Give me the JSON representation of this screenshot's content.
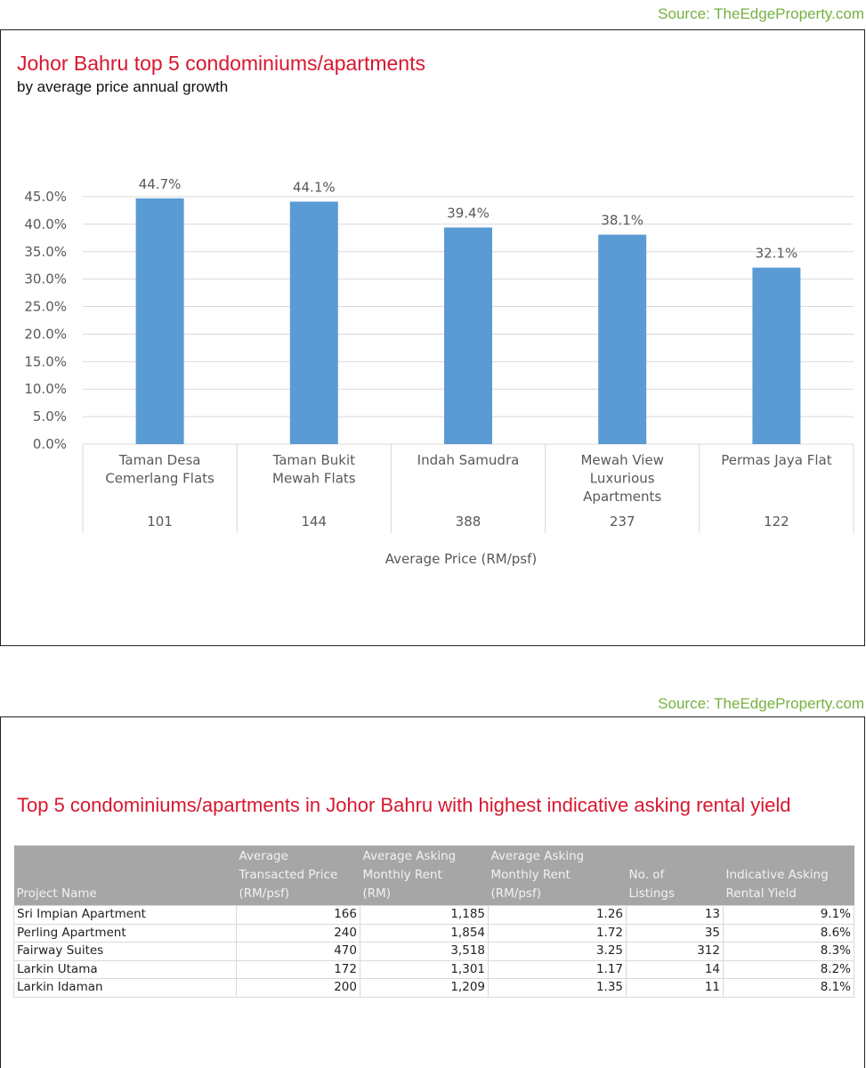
{
  "chart1": {
    "source": "Source: TheEdgeProperty.com",
    "title": "Johor Bahru top 5 condominiums/apartments",
    "subtitle": "by average price annual growth"
  },
  "chart_data": {
    "type": "bar",
    "categories": [
      [
        "Taman Desa",
        "Cemerlang Flats"
      ],
      [
        "Taman Bukit",
        "Mewah Flats"
      ],
      [
        "Indah Samudra"
      ],
      [
        "Mewah View",
        "Luxurious",
        "Apartments"
      ],
      [
        "Permas Jaya Flat"
      ]
    ],
    "values": [
      44.7,
      44.1,
      39.4,
      38.1,
      32.1
    ],
    "data_labels": [
      "44.7%",
      "44.1%",
      "39.4%",
      "38.1%",
      "32.1%"
    ],
    "secondary_categories": [
      "101",
      "144",
      "388",
      "237",
      "122"
    ],
    "xlabel": "Average Price (RM/psf)",
    "ylabel": "",
    "ylim": [
      0,
      45
    ],
    "yticks": [
      0,
      5,
      10,
      15,
      20,
      25,
      30,
      35,
      40,
      45
    ],
    "ytick_labels": [
      "0.0%",
      "5.0%",
      "10.0%",
      "15.0%",
      "20.0%",
      "25.0%",
      "30.0%",
      "35.0%",
      "40.0%",
      "45.0%"
    ],
    "bar_color": "#5b9bd5",
    "grid": true,
    "legend": "none"
  },
  "table2": {
    "source": "Source: TheEdgeProperty.com",
    "title": "Top 5 condominiums/apartments in Johor Bahru with highest indicative asking rental yield",
    "headers": [
      "Project Name",
      "Average\nTransacted Price\n(RM/psf)",
      "Average Asking\nMonthly Rent\n(RM)",
      "Average Asking\nMonthly Rent\n(RM/psf)",
      "No. of\nListings",
      "Indicative Asking\nRental Yield"
    ],
    "rows": [
      [
        "Sri Impian Apartment",
        "166",
        "1,185",
        "1.26",
        "13",
        "9.1%"
      ],
      [
        "Perling Apartment",
        "240",
        "1,854",
        "1.72",
        "35",
        "8.6%"
      ],
      [
        "Fairway Suites",
        "470",
        "3,518",
        "3.25",
        "312",
        "8.3%"
      ],
      [
        "Larkin Utama",
        "172",
        "1,301",
        "1.17",
        "14",
        "8.2%"
      ],
      [
        "Larkin Idaman",
        "200",
        "1,209",
        "1.35",
        "11",
        "8.1%"
      ]
    ]
  },
  "colors": {
    "title": "#d7172f",
    "source": "#76b041",
    "header_bg": "#a6a6a6",
    "bar": "#5b9bd5"
  }
}
